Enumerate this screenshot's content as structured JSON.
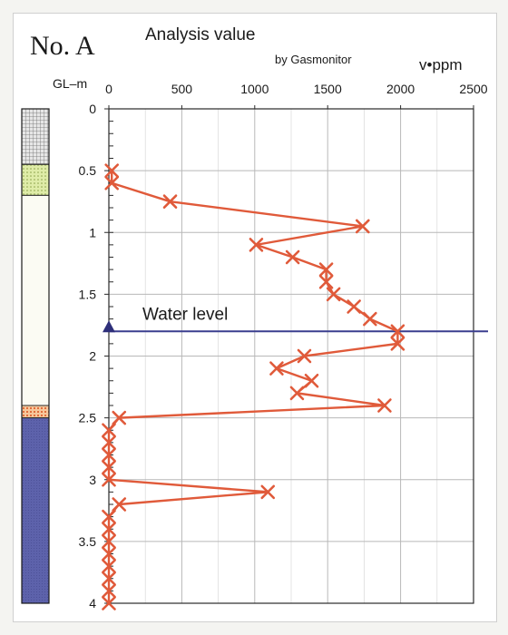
{
  "chart_data": {
    "type": "scatter",
    "title": "Analysis value",
    "subtitle": "by Gasmonitor",
    "well_label": "No. A",
    "ylabel": "GL–m",
    "xlabel": "v•ppm",
    "x_axis_position": "top",
    "xlim": [
      0,
      2500
    ],
    "ylim": [
      0,
      4
    ],
    "y_inverted": true,
    "x_ticks": [
      0,
      500,
      1000,
      1500,
      2000,
      2500
    ],
    "y_ticks": [
      0,
      0.5,
      1,
      1.5,
      2,
      2.5,
      3,
      3.5,
      4
    ],
    "grid": true,
    "series": [
      {
        "color": "#e05a3a",
        "marker": "x",
        "points": [
          {
            "x": 20,
            "y": 0.5
          },
          {
            "x": 20,
            "y": 0.6
          },
          {
            "x": 420,
            "y": 0.75
          },
          {
            "x": 1740,
            "y": 0.95
          },
          {
            "x": 1010,
            "y": 1.1
          },
          {
            "x": 1260,
            "y": 1.2
          },
          {
            "x": 1490,
            "y": 1.3
          },
          {
            "x": 1490,
            "y": 1.4
          },
          {
            "x": 1540,
            "y": 1.5
          },
          {
            "x": 1680,
            "y": 1.6
          },
          {
            "x": 1790,
            "y": 1.7
          },
          {
            "x": 1980,
            "y": 1.8
          },
          {
            "x": 1980,
            "y": 1.9
          },
          {
            "x": 1340,
            "y": 2.0
          },
          {
            "x": 1150,
            "y": 2.1
          },
          {
            "x": 1390,
            "y": 2.2
          },
          {
            "x": 1290,
            "y": 2.3
          },
          {
            "x": 1890,
            "y": 2.4
          },
          {
            "x": 70,
            "y": 2.5
          },
          {
            "x": 0,
            "y": 2.6
          },
          {
            "x": 0,
            "y": 2.7
          },
          {
            "x": 0,
            "y": 2.8
          },
          {
            "x": 0,
            "y": 2.9
          },
          {
            "x": 0,
            "y": 3.0
          },
          {
            "x": 1090,
            "y": 3.1
          },
          {
            "x": 70,
            "y": 3.2
          },
          {
            "x": 0,
            "y": 3.3
          },
          {
            "x": 0,
            "y": 3.4
          },
          {
            "x": 0,
            "y": 3.5
          },
          {
            "x": 0,
            "y": 3.6
          },
          {
            "x": 0,
            "y": 3.7
          },
          {
            "x": 0,
            "y": 3.8
          },
          {
            "x": 0,
            "y": 3.9
          },
          {
            "x": 0,
            "y": 4.0
          }
        ]
      }
    ],
    "water_level": {
      "label": "Water level",
      "depth": 1.8,
      "color": "#3b3f8f"
    },
    "soil_column": [
      {
        "from": 0,
        "to": 0.45,
        "pattern": "grid",
        "color": "#9a9a9a"
      },
      {
        "from": 0.45,
        "to": 0.7,
        "pattern": "dots",
        "color": "#d9e8a0"
      },
      {
        "from": 0.7,
        "to": 2.4,
        "pattern": "plain",
        "color": "#fbfbf3"
      },
      {
        "from": 2.4,
        "to": 2.5,
        "pattern": "dots",
        "color": "#f2a96b"
      },
      {
        "from": 2.5,
        "to": 4.0,
        "pattern": "plain",
        "color": "#5a5fa8"
      }
    ]
  }
}
